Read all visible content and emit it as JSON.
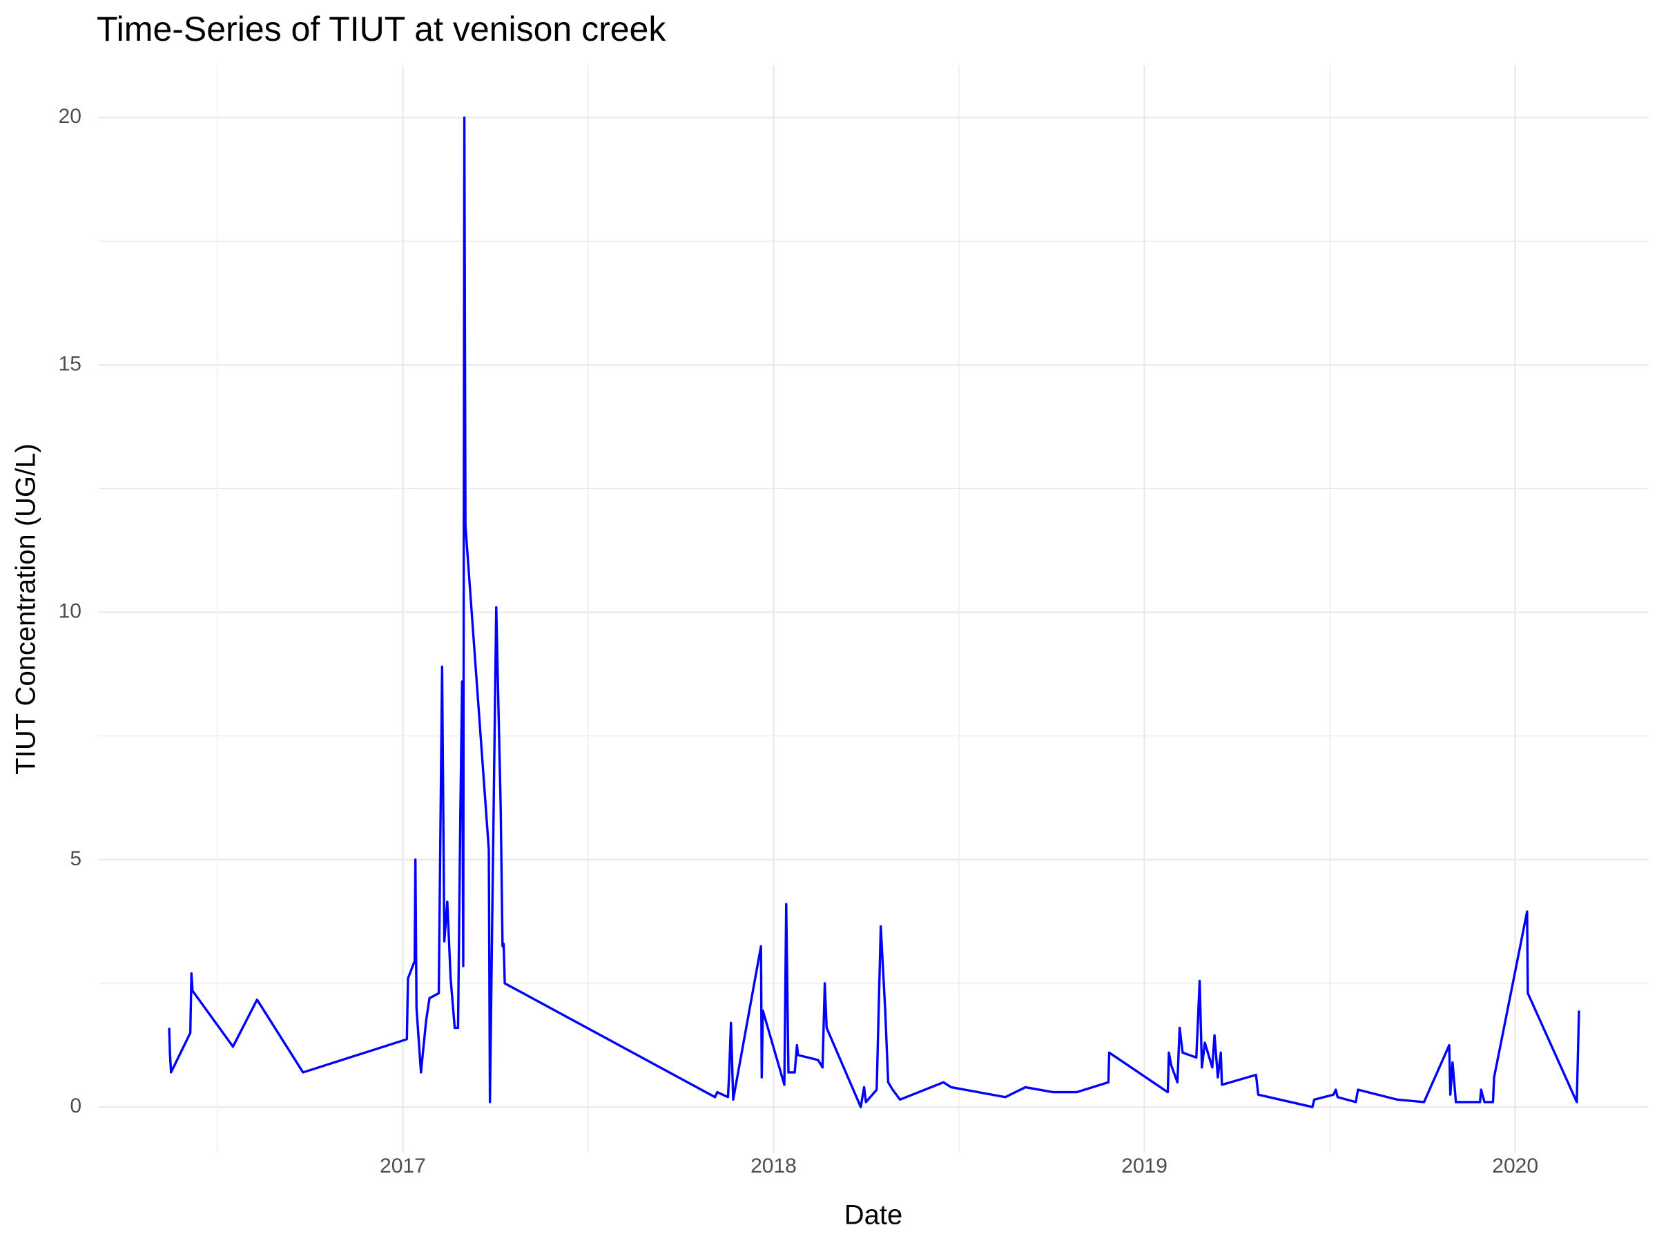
{
  "chart_data": {
    "type": "line",
    "title": "Time-Series of TIUT at venison creek",
    "x_label": "Date",
    "y_label": "TIUT Concentration (UG/L)",
    "color": "#0000ff",
    "grid": true,
    "xlim": [
      2016.18,
      2020.36
    ],
    "ylim": [
      -0.92,
      21.05
    ],
    "xticks": [
      2017,
      2018,
      2019,
      2020
    ],
    "yticks": [
      0,
      5,
      10,
      15,
      20
    ],
    "x_minor_ticks": [
      2016.5,
      2017.5,
      2018.5,
      2019.5
    ],
    "y_minor_ticks": [
      2.5,
      7.5,
      12.5,
      17.5
    ],
    "x": [
      2016.37,
      2016.372,
      2016.375,
      2016.427,
      2016.43,
      2016.433,
      2016.542,
      2016.607,
      2016.731,
      2017.011,
      2017.014,
      2017.032,
      2017.034,
      2017.037,
      2017.049,
      2017.063,
      2017.072,
      2017.097,
      2017.106,
      2017.112,
      2017.12,
      2017.129,
      2017.14,
      2017.149,
      2017.155,
      2017.16,
      2017.163,
      2017.166,
      2017.169,
      2017.232,
      2017.235,
      2017.241,
      2017.252,
      2017.264,
      2017.269,
      2017.272,
      2017.275,
      2017.842,
      2017.848,
      2017.877,
      2017.88,
      2017.885,
      2017.891,
      2017.966,
      2017.968,
      2017.971,
      2018.029,
      2018.034,
      2018.04,
      2018.057,
      2018.063,
      2018.066,
      2018.12,
      2018.132,
      2018.138,
      2018.143,
      2018.235,
      2018.244,
      2018.249,
      2018.278,
      2018.289,
      2018.301,
      2018.309,
      2018.321,
      2018.341,
      2018.458,
      2018.479,
      2018.625,
      2018.679,
      2018.754,
      2018.817,
      2018.903,
      2018.905,
      2019.063,
      2019.066,
      2019.072,
      2019.089,
      2019.095,
      2019.103,
      2019.14,
      2019.149,
      2019.155,
      2019.163,
      2019.183,
      2019.189,
      2019.198,
      2019.206,
      2019.209,
      2019.301,
      2019.307,
      2019.453,
      2019.458,
      2019.51,
      2019.516,
      2019.521,
      2019.57,
      2019.576,
      2019.682,
      2019.754,
      2019.822,
      2019.825,
      2019.831,
      2019.84,
      2019.905,
      2019.908,
      2019.917,
      2019.94,
      2019.943,
      2020.032,
      2020.034,
      2020.166,
      2020.172
    ],
    "values": [
      1.6,
      1.1,
      0.7,
      1.5,
      2.7,
      2.35,
      1.22,
      2.17,
      0.7,
      1.37,
      2.6,
      2.95,
      5.0,
      2.0,
      0.7,
      1.75,
      2.2,
      2.3,
      8.9,
      3.35,
      4.15,
      2.6,
      1.6,
      1.6,
      5.8,
      8.6,
      2.85,
      20.0,
      11.75,
      5.2,
      0.1,
      3.7,
      10.1,
      6.05,
      3.25,
      3.3,
      2.5,
      0.2,
      0.3,
      0.2,
      0.65,
      1.7,
      0.15,
      3.25,
      0.6,
      1.95,
      0.45,
      4.1,
      0.7,
      0.7,
      1.25,
      1.05,
      0.95,
      0.8,
      2.5,
      1.6,
      0.0,
      0.4,
      0.1,
      0.35,
      3.65,
      1.95,
      0.5,
      0.35,
      0.15,
      0.5,
      0.4,
      0.2,
      0.4,
      0.3,
      0.3,
      0.5,
      1.1,
      0.3,
      1.1,
      0.85,
      0.5,
      1.6,
      1.1,
      1.0,
      2.55,
      0.8,
      1.3,
      0.8,
      1.45,
      0.6,
      1.1,
      0.45,
      0.65,
      0.25,
      0.0,
      0.15,
      0.25,
      0.35,
      0.2,
      0.1,
      0.35,
      0.15,
      0.1,
      1.25,
      0.25,
      0.9,
      0.1,
      0.1,
      0.35,
      0.1,
      0.1,
      0.6,
      3.95,
      2.3,
      0.1,
      1.95
    ]
  }
}
